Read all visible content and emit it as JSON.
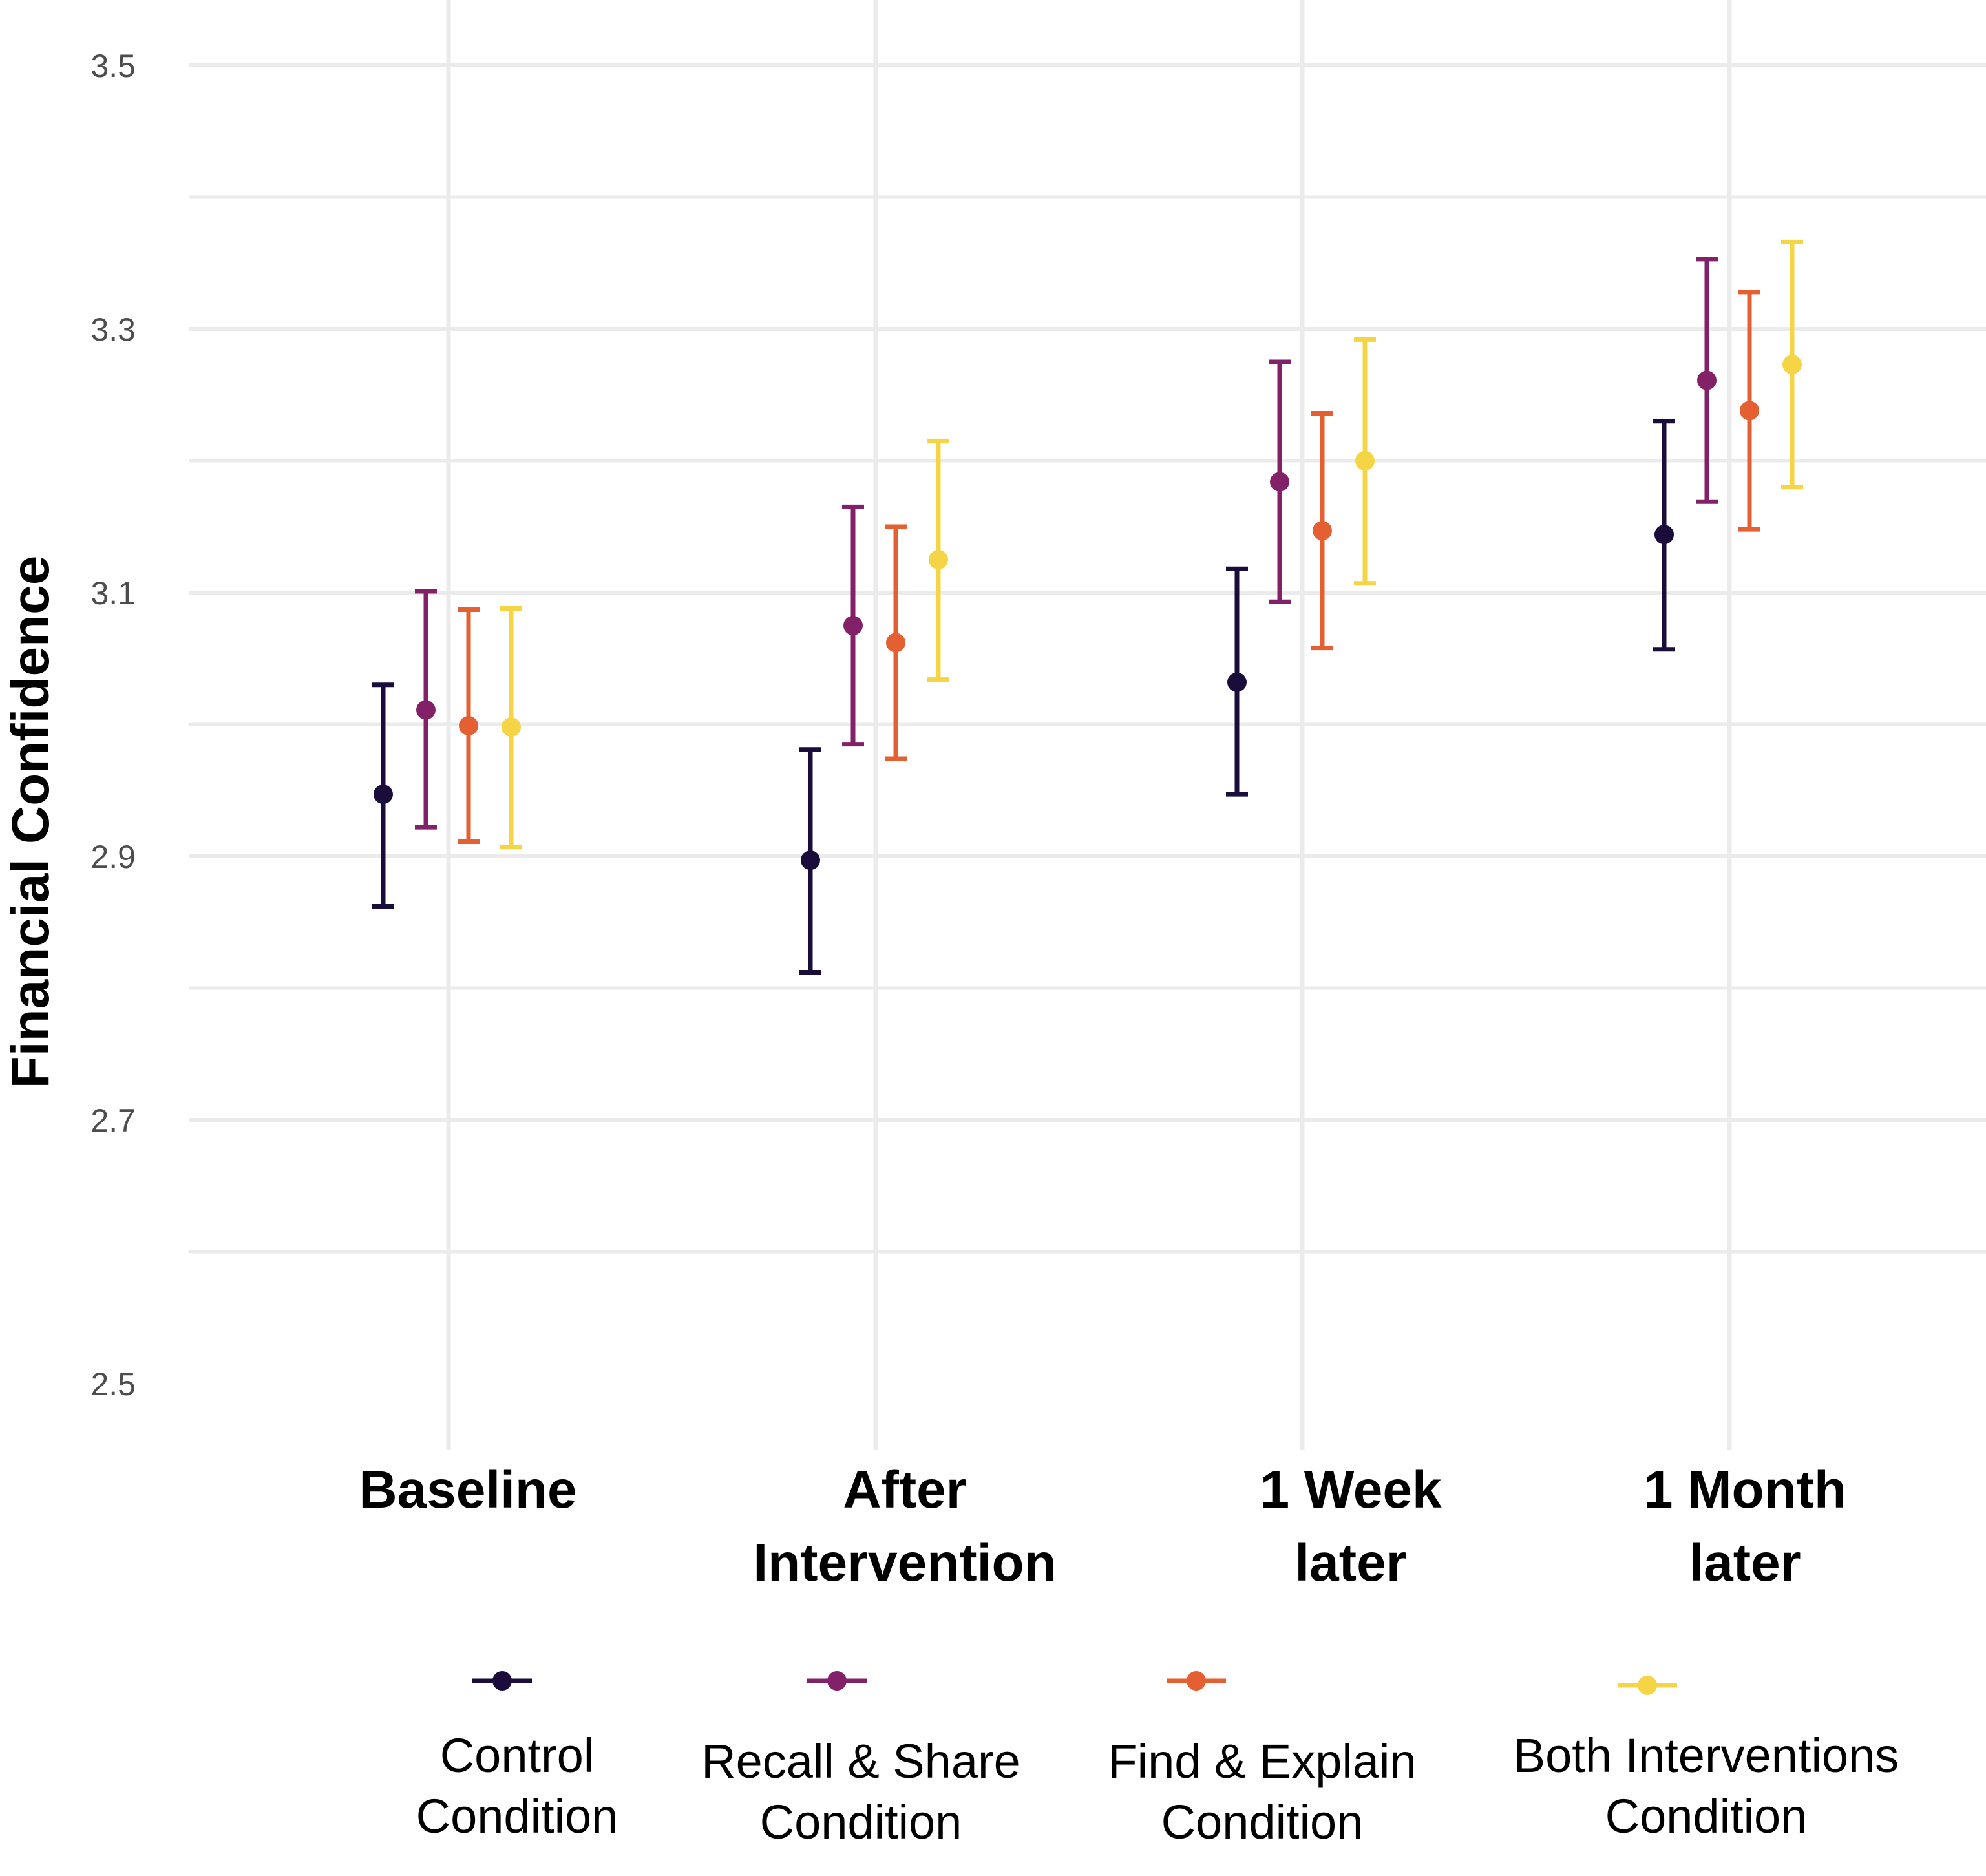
{
  "chart_data": {
    "type": "scatter",
    "subtype": "point-errorbar (dodged)",
    "title": "",
    "xlabel": "",
    "ylabel": "Financial Confidence",
    "ylim": [
      2.5,
      3.5
    ],
    "yticks": [
      2.5,
      2.7,
      2.9,
      3.1,
      3.3,
      3.5
    ],
    "grid": true,
    "legend_position": "bottom",
    "categories": [
      {
        "label": [
          "Baseline"
        ]
      },
      {
        "label": [
          "After",
          "Intervention"
        ]
      },
      {
        "label": [
          "1 Week",
          "later"
        ]
      },
      {
        "label": [
          "1 Month",
          "later"
        ]
      }
    ],
    "series": [
      {
        "name": "Control Condition",
        "legend_lines": [
          "Control",
          "Condition"
        ],
        "color": "#1a0c3b",
        "values": [
          2.947,
          2.897,
          3.032,
          3.144
        ],
        "lower": [
          2.862,
          2.812,
          2.947,
          3.057
        ],
        "upper": [
          3.03,
          2.981,
          3.118,
          3.23
        ]
      },
      {
        "name": "Recall & Share Condition",
        "legend_lines": [
          "Recall & Share",
          "Condition"
        ],
        "color": "#832168",
        "values": [
          3.011,
          3.075,
          3.184,
          3.261
        ],
        "lower": [
          2.922,
          2.985,
          3.093,
          3.169
        ],
        "upper": [
          3.101,
          3.165,
          3.275,
          3.353
        ]
      },
      {
        "name": "Find & Explain Condition",
        "legend_lines": [
          "Find & Explain",
          "Condition"
        ],
        "color": "#e45f32",
        "values": [
          2.999,
          3.062,
          3.147,
          3.238
        ],
        "lower": [
          2.911,
          2.974,
          3.058,
          3.148
        ],
        "upper": [
          3.087,
          3.15,
          3.236,
          3.328
        ]
      },
      {
        "name": "Both Interventions Condition",
        "legend_lines": [
          "Both Interventions",
          "Condition"
        ],
        "color": "#f5d545",
        "values": [
          2.998,
          3.125,
          3.2,
          3.273
        ],
        "lower": [
          2.907,
          3.034,
          3.107,
          3.18
        ],
        "upper": [
          3.088,
          3.215,
          3.292,
          3.366
        ]
      }
    ]
  },
  "colors": {
    "grid": "#ebebeb",
    "tick_text": "#4d4d4d",
    "label_text": "#000000"
  }
}
